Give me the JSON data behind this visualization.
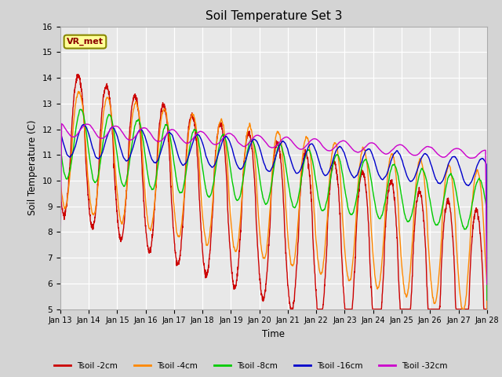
{
  "title": "Soil Temperature Set 3",
  "xlabel": "Time",
  "ylabel": "Soil Temperature (C)",
  "ylim": [
    5.0,
    16.0
  ],
  "yticks": [
    5.0,
    6.0,
    7.0,
    8.0,
    9.0,
    10.0,
    11.0,
    12.0,
    13.0,
    14.0,
    15.0,
    16.0
  ],
  "fig_bg_color": "#d4d4d4",
  "plot_bg_color": "#e8e8e8",
  "legend_label": "VR_met",
  "series_colors": {
    "Tsoil -2cm": "#cc0000",
    "Tsoil -4cm": "#ff8800",
    "Tsoil -8cm": "#00cc00",
    "Tsoil -16cm": "#0000cc",
    "Tsoil -32cm": "#cc00cc"
  },
  "xtick_labels": [
    "Jan 13",
    "Jan 14",
    "Jan 15",
    "Jan 16",
    "Jan 17",
    "Jan 18",
    "Jan 19",
    "Jan 20",
    "Jan 21",
    "Jan 22",
    "Jan 23",
    "Jan 24",
    "Jan 25",
    "Jan 26",
    "Jan 27",
    "Jan 28"
  ],
  "n_days": 15,
  "points_per_day": 144
}
